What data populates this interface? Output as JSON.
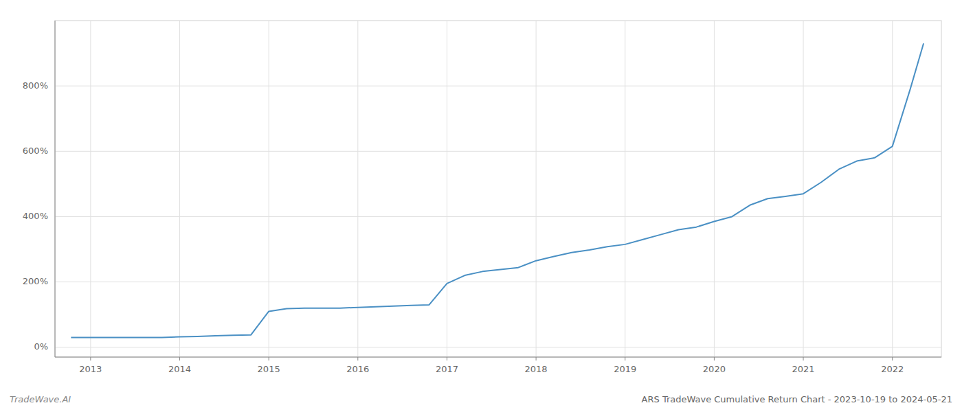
{
  "chart_data": {
    "type": "line",
    "title": "ARS TradeWave Cumulative Return Chart - 2023-10-19 to 2024-05-21",
    "annotations": [
      "TradeWave.AI"
    ],
    "x": [
      2012.78,
      2013.0,
      2013.2,
      2013.4,
      2013.6,
      2013.8,
      2014.0,
      2014.2,
      2014.4,
      2014.6,
      2014.8,
      2015.0,
      2015.2,
      2015.4,
      2015.6,
      2015.8,
      2016.0,
      2016.2,
      2016.4,
      2016.6,
      2016.8,
      2017.0,
      2017.2,
      2017.4,
      2017.6,
      2017.8,
      2018.0,
      2018.2,
      2018.4,
      2018.6,
      2018.8,
      2019.0,
      2019.2,
      2019.4,
      2019.6,
      2019.8,
      2020.0,
      2020.2,
      2020.4,
      2020.6,
      2020.8,
      2021.0,
      2021.2,
      2021.4,
      2021.6,
      2021.8,
      2022.0,
      2022.2,
      2022.35
    ],
    "values": [
      30,
      30,
      30,
      30,
      30,
      30,
      32,
      33,
      35,
      37,
      38,
      110,
      118,
      120,
      120,
      120,
      122,
      124,
      126,
      128,
      130,
      195,
      220,
      232,
      238,
      244,
      265,
      278,
      290,
      298,
      308,
      315,
      330,
      345,
      360,
      368,
      385,
      400,
      435,
      455,
      462,
      470,
      505,
      545,
      570,
      580,
      615,
      790,
      930
    ],
    "color": "#4a90c4",
    "xlim": [
      2012.6,
      2022.55
    ],
    "xticks": [
      2013,
      2014,
      2015,
      2016,
      2017,
      2018,
      2019,
      2020,
      2021,
      2022
    ],
    "ylim": [
      -30,
      1000
    ],
    "yticks": [
      {
        "value": 0,
        "label": "0%"
      },
      {
        "value": 200,
        "label": "200%"
      },
      {
        "value": 400,
        "label": "400%"
      },
      {
        "value": 600,
        "label": "600%"
      },
      {
        "value": 800,
        "label": "800%"
      }
    ],
    "grid": true
  }
}
